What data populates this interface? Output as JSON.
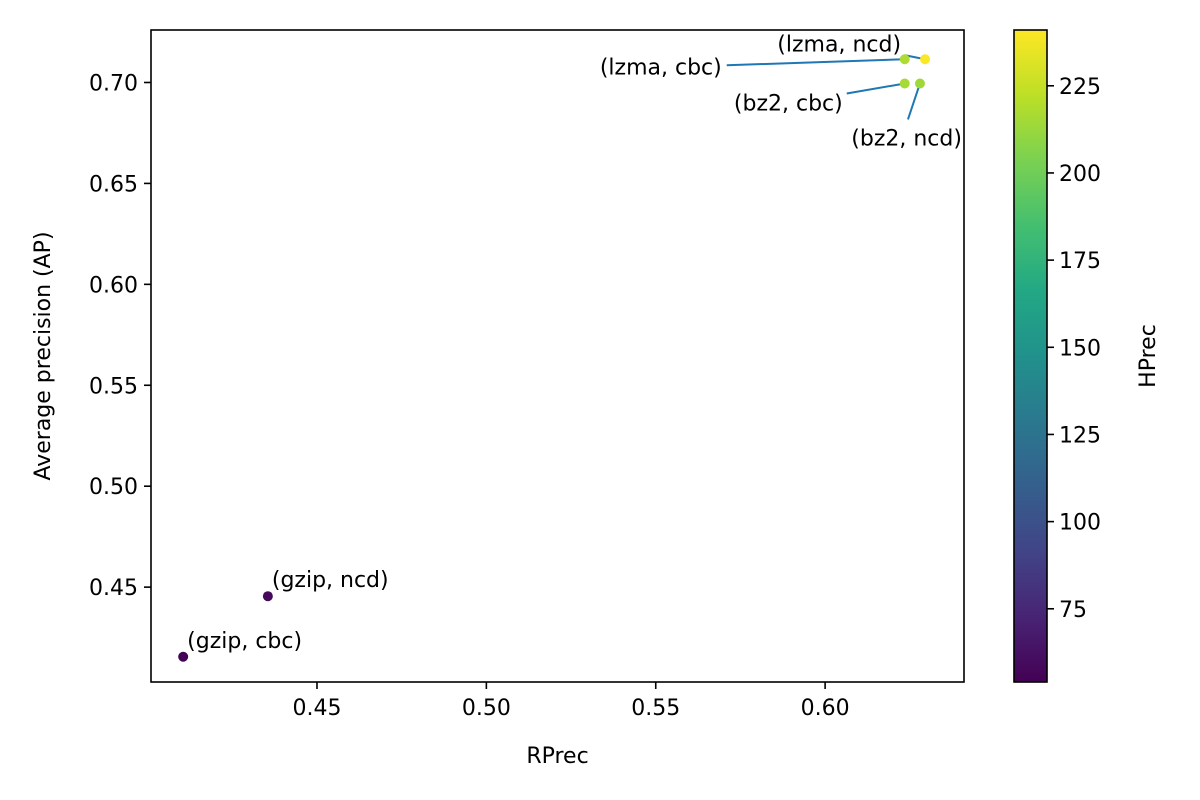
{
  "chart_data": {
    "type": "scatter",
    "title": "",
    "xlabel": "RPrec",
    "ylabel": "Average precision (AP)",
    "colorbar_label": "HPrec",
    "colormap": "viridis",
    "xlim": [
      0.401,
      0.641
    ],
    "ylim": [
      0.403,
      0.726
    ],
    "clim": [
      54,
      241
    ],
    "xticks": [
      0.45,
      0.5,
      0.55,
      0.6
    ],
    "xtick_labels": [
      "0.45",
      "0.50",
      "0.55",
      "0.60"
    ],
    "yticks": [
      0.45,
      0.5,
      0.55,
      0.6,
      0.65,
      0.7
    ],
    "ytick_labels": [
      "0.45",
      "0.50",
      "0.55",
      "0.60",
      "0.65",
      "0.70"
    ],
    "cticks": [
      75,
      100,
      125,
      150,
      175,
      200,
      225
    ],
    "ctick_labels": [
      "75",
      "100",
      "125",
      "150",
      "175",
      "200",
      "225"
    ],
    "leader_color": "#1f77b4",
    "points": [
      {
        "label": "(gzip, cbc)",
        "x": 0.4105,
        "y": 0.4155,
        "c": 55
      },
      {
        "label": "(gzip, ncd)",
        "x": 0.4355,
        "y": 0.4455,
        "c": 58
      },
      {
        "label": "(lzma, cbc)",
        "x": 0.6235,
        "y": 0.7115,
        "c": 218
      },
      {
        "label": "(lzma, ncd)",
        "x": 0.6295,
        "y": 0.7115,
        "c": 240
      },
      {
        "label": "(bz2, cbc)",
        "x": 0.6235,
        "y": 0.6995,
        "c": 216
      },
      {
        "label": "(bz2, ncd)",
        "x": 0.628,
        "y": 0.6995,
        "c": 214
      }
    ]
  }
}
